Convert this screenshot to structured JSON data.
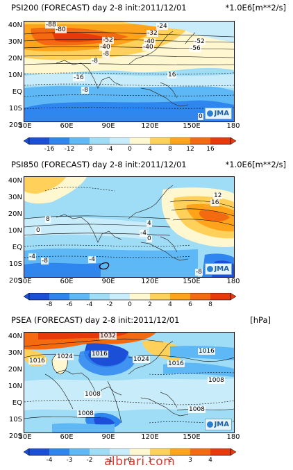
{
  "panels": [
    {
      "id": "psi200",
      "title_left": "PSI200 (FORECAST)  day 2-8  init:2011/12/01",
      "title_right": "*1.0E6[m**2/s]",
      "lat_labels": [
        "40N",
        "30N",
        "20N",
        "10N",
        "EQ",
        "10S",
        "20S"
      ],
      "lon_labels": [
        "30E",
        "60E",
        "90E",
        "120E",
        "150E",
        "180"
      ],
      "colorbar_labels": [
        "-16",
        "-12",
        "-8",
        "-4",
        "0",
        "4",
        "8",
        "12",
        "16"
      ],
      "contour_labels": [
        "-88",
        "-80",
        "-52",
        "-40",
        "-24",
        "-32",
        "-40",
        "-40",
        "-52",
        "-56",
        "-8",
        "-8",
        "-16",
        "16",
        "-8",
        "0",
        "0"
      ],
      "logo": "JMA"
    },
    {
      "id": "psi850",
      "title_left": "PSI850 (FORECAST)  day 2-8  init:2011/12/01",
      "title_right": "*1.0E6[m**2/s]",
      "lat_labels": [
        "40N",
        "30N",
        "20N",
        "10N",
        "EQ",
        "10S",
        "20S"
      ],
      "lon_labels": [
        "30E",
        "60E",
        "90E",
        "120E",
        "150E",
        "180"
      ],
      "colorbar_labels": [
        "-8",
        "-6",
        "-4",
        "-2",
        "0",
        "2",
        "4",
        "6",
        "8"
      ],
      "contour_labels": [
        "12",
        "16",
        "8",
        "4",
        "0",
        "-4",
        "0",
        "-4",
        "-8",
        "-4",
        "-4",
        "-8"
      ],
      "logo": "JMA"
    },
    {
      "id": "psea",
      "title_left": "PSEA (FORECAST)  day 2-8  init:2011/12/01",
      "title_right": "[hPa]",
      "lat_labels": [
        "40N",
        "30N",
        "20N",
        "10N",
        "EQ",
        "10S",
        "20S"
      ],
      "lon_labels": [
        "30E",
        "60E",
        "90E",
        "120E",
        "150E",
        "180"
      ],
      "colorbar_labels": [
        "-4",
        "-3",
        "-2",
        "-1",
        "0",
        "1",
        "2",
        "3",
        "4"
      ],
      "contour_labels": [
        "1032",
        "1016",
        "1024",
        "1016",
        "1024",
        "1016",
        "1016",
        "1008",
        "1008",
        "1008",
        "1008"
      ],
      "logo": "JMA"
    }
  ],
  "colors": {
    "neg_scale": [
      "#1c4fd8",
      "#2f86ee",
      "#5db8f5",
      "#9fdcf5",
      "#c8ecfa"
    ],
    "pos_scale": [
      "#fff7cf",
      "#ffd15a",
      "#ffa41a",
      "#f46a10",
      "#e8390a"
    ]
  },
  "watermark": "albrari.com"
}
